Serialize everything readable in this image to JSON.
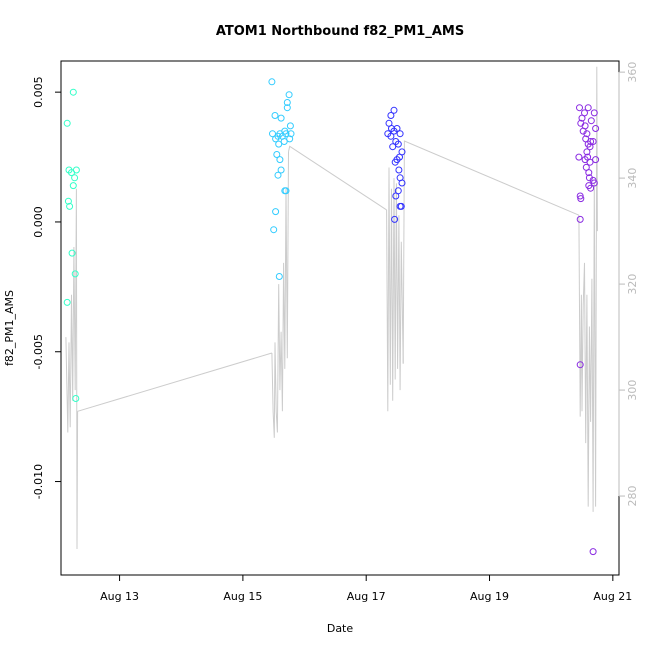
{
  "chart_data": {
    "type": "scatter",
    "title": "ATOM1 Northbound f82_PM1_AMS",
    "xlabel": "Date",
    "ylabel": "f82_PM1_AMS",
    "x_unit": "days in August",
    "xlim": [
      12.05,
      21.1
    ],
    "ylim": [
      -0.0136,
      0.0062
    ],
    "x_ticks": [
      13,
      15,
      17,
      19,
      21
    ],
    "x_tick_labels": [
      "Aug 13",
      "Aug 15",
      "Aug 17",
      "Aug 19",
      "Aug 21"
    ],
    "y_ticks": [
      -0.01,
      -0.005,
      0.0,
      0.005
    ],
    "y_tick_labels": [
      "-0.010",
      "-0.005",
      "0.000",
      "0.005"
    ],
    "y2_ticks": [
      280,
      300,
      320,
      340,
      360
    ],
    "y2_tick_labels": [
      "280",
      "300",
      "320",
      "340",
      "360"
    ],
    "y2lim": [
      265.1,
      362.1
    ],
    "grid": false,
    "legend": "none",
    "colors": {
      "aug12": "#33ffc8",
      "aug15": "#33ccff",
      "aug17": "#3333ff",
      "aug20": "#8a2be2",
      "line": "#cccccc",
      "right_axis": "#bbbbbb"
    },
    "series": [
      {
        "color_key": "aug12",
        "points": [
          [
            12.15,
            0.0038
          ],
          [
            12.25,
            0.005
          ],
          [
            12.18,
            0.002
          ],
          [
            12.22,
            0.0019
          ],
          [
            12.3,
            0.002
          ],
          [
            12.27,
            0.0017
          ],
          [
            12.25,
            0.0014
          ],
          [
            12.17,
            0.0008
          ],
          [
            12.19,
            0.0006
          ],
          [
            12.23,
            -0.0012
          ],
          [
            12.28,
            -0.002
          ],
          [
            12.15,
            -0.0031
          ],
          [
            12.29,
            -0.0068
          ]
        ]
      },
      {
        "color_key": "aug15",
        "points": [
          [
            15.47,
            0.0054
          ],
          [
            15.75,
            0.0049
          ],
          [
            15.72,
            0.0046
          ],
          [
            15.72,
            0.0044
          ],
          [
            15.52,
            0.0041
          ],
          [
            15.62,
            0.004
          ],
          [
            15.77,
            0.0037
          ],
          [
            15.68,
            0.0035
          ],
          [
            15.48,
            0.0034
          ],
          [
            15.6,
            0.0034
          ],
          [
            15.7,
            0.0034
          ],
          [
            15.78,
            0.0034
          ],
          [
            15.57,
            0.0033
          ],
          [
            15.64,
            0.0033
          ],
          [
            15.53,
            0.0032
          ],
          [
            15.76,
            0.0032
          ],
          [
            15.67,
            0.0031
          ],
          [
            15.58,
            0.003
          ],
          [
            15.55,
            0.0026
          ],
          [
            15.6,
            0.0024
          ],
          [
            15.62,
            0.002
          ],
          [
            15.57,
            0.0018
          ],
          [
            15.68,
            0.0012
          ],
          [
            15.7,
            0.0012
          ],
          [
            15.53,
            0.0004
          ],
          [
            15.5,
            -0.0003
          ],
          [
            15.59,
            -0.0021
          ]
        ]
      },
      {
        "color_key": "aug17",
        "points": [
          [
            17.45,
            0.0043
          ],
          [
            17.4,
            0.0041
          ],
          [
            17.37,
            0.0038
          ],
          [
            17.41,
            0.0036
          ],
          [
            17.5,
            0.0036
          ],
          [
            17.45,
            0.0035
          ],
          [
            17.35,
            0.0034
          ],
          [
            17.4,
            0.0033
          ],
          [
            17.55,
            0.0034
          ],
          [
            17.48,
            0.0031
          ],
          [
            17.52,
            0.003
          ],
          [
            17.43,
            0.0029
          ],
          [
            17.58,
            0.0027
          ],
          [
            17.54,
            0.0025
          ],
          [
            17.5,
            0.0024
          ],
          [
            17.47,
            0.0023
          ],
          [
            17.53,
            0.002
          ],
          [
            17.55,
            0.0017
          ],
          [
            17.58,
            0.0015
          ],
          [
            17.52,
            0.0012
          ],
          [
            17.48,
            0.001
          ],
          [
            17.55,
            0.0006
          ],
          [
            17.57,
            0.0006
          ],
          [
            17.46,
            0.0001
          ]
        ]
      },
      {
        "color_key": "aug20",
        "points": [
          [
            20.46,
            0.0044
          ],
          [
            20.6,
            0.0044
          ],
          [
            20.54,
            0.0042
          ],
          [
            20.7,
            0.0042
          ],
          [
            20.5,
            0.004
          ],
          [
            20.65,
            0.0039
          ],
          [
            20.48,
            0.0038
          ],
          [
            20.55,
            0.0037
          ],
          [
            20.72,
            0.0036
          ],
          [
            20.52,
            0.0035
          ],
          [
            20.58,
            0.0034
          ],
          [
            20.56,
            0.0032
          ],
          [
            20.64,
            0.0031
          ],
          [
            20.68,
            0.0031
          ],
          [
            20.6,
            0.003
          ],
          [
            20.63,
            0.0029
          ],
          [
            20.58,
            0.0027
          ],
          [
            20.59,
            0.0025
          ],
          [
            20.45,
            0.0025
          ],
          [
            20.55,
            0.0024
          ],
          [
            20.72,
            0.0024
          ],
          [
            20.63,
            0.0023
          ],
          [
            20.57,
            0.0021
          ],
          [
            20.61,
            0.0019
          ],
          [
            20.62,
            0.0017
          ],
          [
            20.68,
            0.0016
          ],
          [
            20.7,
            0.0015
          ],
          [
            20.61,
            0.0014
          ],
          [
            20.64,
            0.0013
          ],
          [
            20.47,
            0.001
          ],
          [
            20.48,
            0.0009
          ],
          [
            20.47,
            0.0001
          ],
          [
            20.47,
            -0.0055
          ],
          [
            20.68,
            -0.0127
          ]
        ]
      }
    ],
    "secondary_line": {
      "axis": "right",
      "color_key": "line",
      "segments": [
        [
          [
            12.13,
            310
          ],
          [
            12.16,
            292
          ],
          [
            12.18,
            309
          ],
          [
            12.2,
            293
          ],
          [
            12.22,
            318
          ],
          [
            12.24,
            298
          ],
          [
            12.26,
            327
          ],
          [
            12.28,
            300
          ],
          [
            12.3,
            338
          ],
          [
            12.31,
            270
          ],
          [
            12.32,
            296
          ]
        ],
        [
          [
            12.32,
            296
          ],
          [
            15.47,
            307
          ]
        ],
        [
          [
            15.47,
            307
          ],
          [
            15.49,
            296
          ],
          [
            15.51,
            291
          ],
          [
            15.52,
            309
          ],
          [
            15.54,
            296
          ],
          [
            15.56,
            292
          ],
          [
            15.58,
            320
          ],
          [
            15.6,
            300
          ],
          [
            15.62,
            311
          ],
          [
            15.64,
            296
          ],
          [
            15.66,
            324
          ],
          [
            15.68,
            304
          ],
          [
            15.7,
            338
          ],
          [
            15.72,
            306
          ],
          [
            15.74,
            345
          ]
        ],
        [
          [
            15.74,
            345
          ],
          [
            15.76,
            346
          ],
          [
            17.33,
            334
          ]
        ],
        [
          [
            17.33,
            334
          ],
          [
            17.35,
            296
          ],
          [
            17.37,
            342
          ],
          [
            17.39,
            301
          ],
          [
            17.41,
            338
          ],
          [
            17.43,
            298
          ],
          [
            17.45,
            340
          ],
          [
            17.47,
            302
          ],
          [
            17.49,
            339
          ],
          [
            17.51,
            304
          ],
          [
            17.53,
            333
          ],
          [
            17.55,
            300
          ],
          [
            17.57,
            328
          ],
          [
            17.6,
            305
          ]
        ],
        [
          [
            17.6,
            305
          ],
          [
            17.62,
            347
          ],
          [
            20.45,
            333
          ]
        ],
        [
          [
            20.45,
            333
          ],
          [
            20.47,
            295
          ],
          [
            20.49,
            318
          ],
          [
            20.5,
            296
          ],
          [
            20.52,
            316
          ],
          [
            20.54,
            324
          ],
          [
            20.56,
            290
          ],
          [
            20.58,
            318
          ],
          [
            20.6,
            278
          ],
          [
            20.62,
            312
          ],
          [
            20.64,
            294
          ],
          [
            20.66,
            321
          ],
          [
            20.68,
            277
          ],
          [
            20.7,
            339
          ],
          [
            20.72,
            278
          ],
          [
            20.74,
            361
          ],
          [
            20.75,
            330
          ]
        ]
      ]
    }
  }
}
